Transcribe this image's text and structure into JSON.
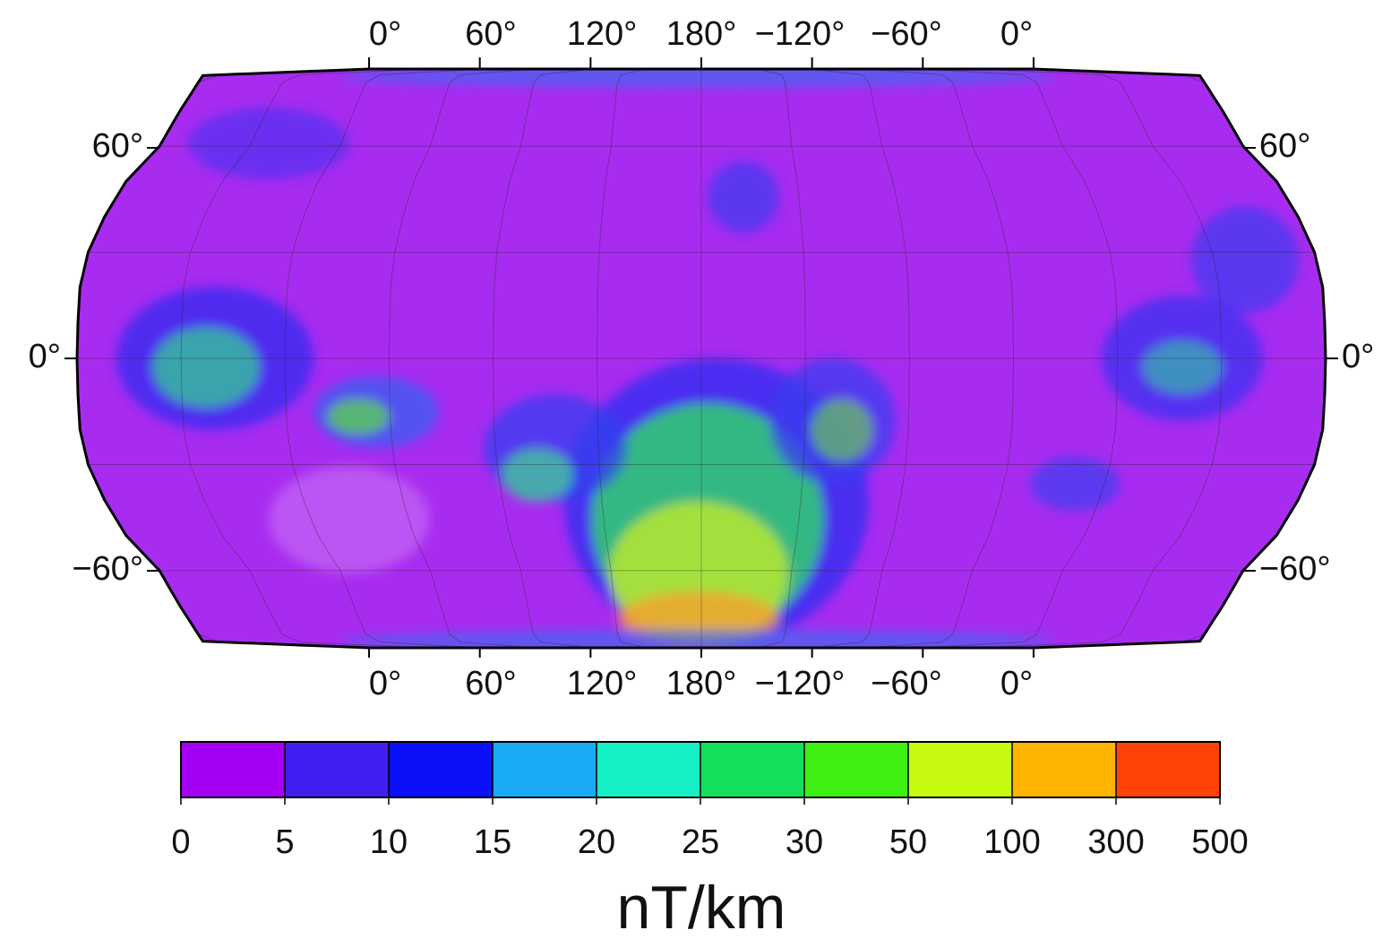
{
  "map": {
    "top_labels": [
      "0°",
      "60°",
      "120°",
      "180°",
      "−120°",
      "−60°",
      "0°"
    ],
    "bottom_labels": [
      "0°",
      "60°",
      "120°",
      "180°",
      "−120°",
      "−60°",
      "0°"
    ],
    "left_labels": [
      "60°",
      "0°",
      "−60°"
    ],
    "right_labels": [
      "60°",
      "0°",
      "−60°"
    ]
  },
  "colorbar": {
    "ticks": [
      0,
      5,
      10,
      15,
      20,
      25,
      30,
      50,
      100,
      300,
      500
    ],
    "colors": [
      "#a400f4",
      "#3f1ef0",
      "#0a10f8",
      "#1aaaf4",
      "#14f0c4",
      "#12e05a",
      "#3ef012",
      "#c6fa10",
      "#ffb400",
      "#ff4208"
    ],
    "label": "nT/km"
  }
}
